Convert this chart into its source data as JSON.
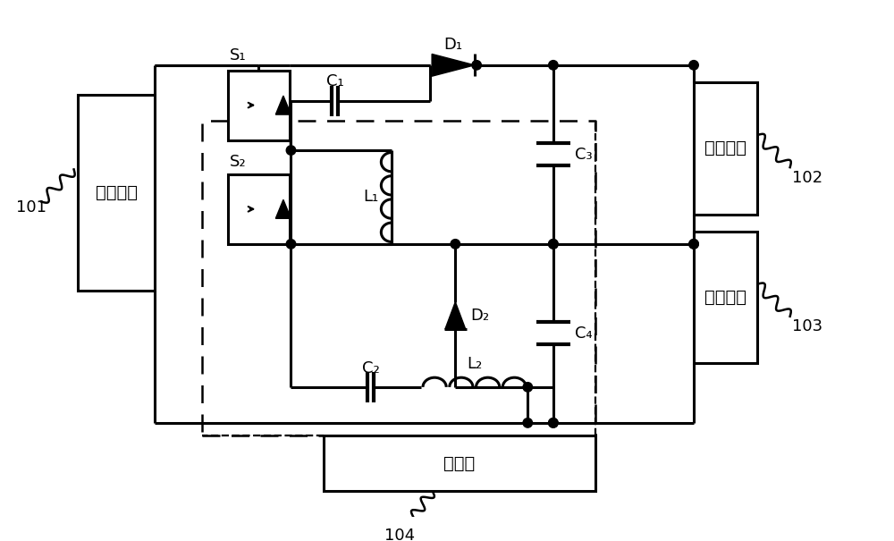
{
  "bg_color": "#ffffff",
  "lw": 2.2,
  "lw_thick": 3.0,
  "font_size_box": 14,
  "font_size_label": 13,
  "port1_label": "第一端口",
  "port2_label": "第二端口",
  "port3_label": "第三端口",
  "controller_label": "控制器",
  "ref_101": "101",
  "ref_102": "102",
  "ref_103": "103",
  "ref_104": "104",
  "label_S1": "S₁",
  "label_S2": "S₂",
  "label_C1": "C₁",
  "label_C2": "C₂",
  "label_C3": "C₃",
  "label_C4": "C₄",
  "label_D1": "D₁",
  "label_D2": "D₂",
  "label_L1": "L₁",
  "label_L2": "L₂"
}
